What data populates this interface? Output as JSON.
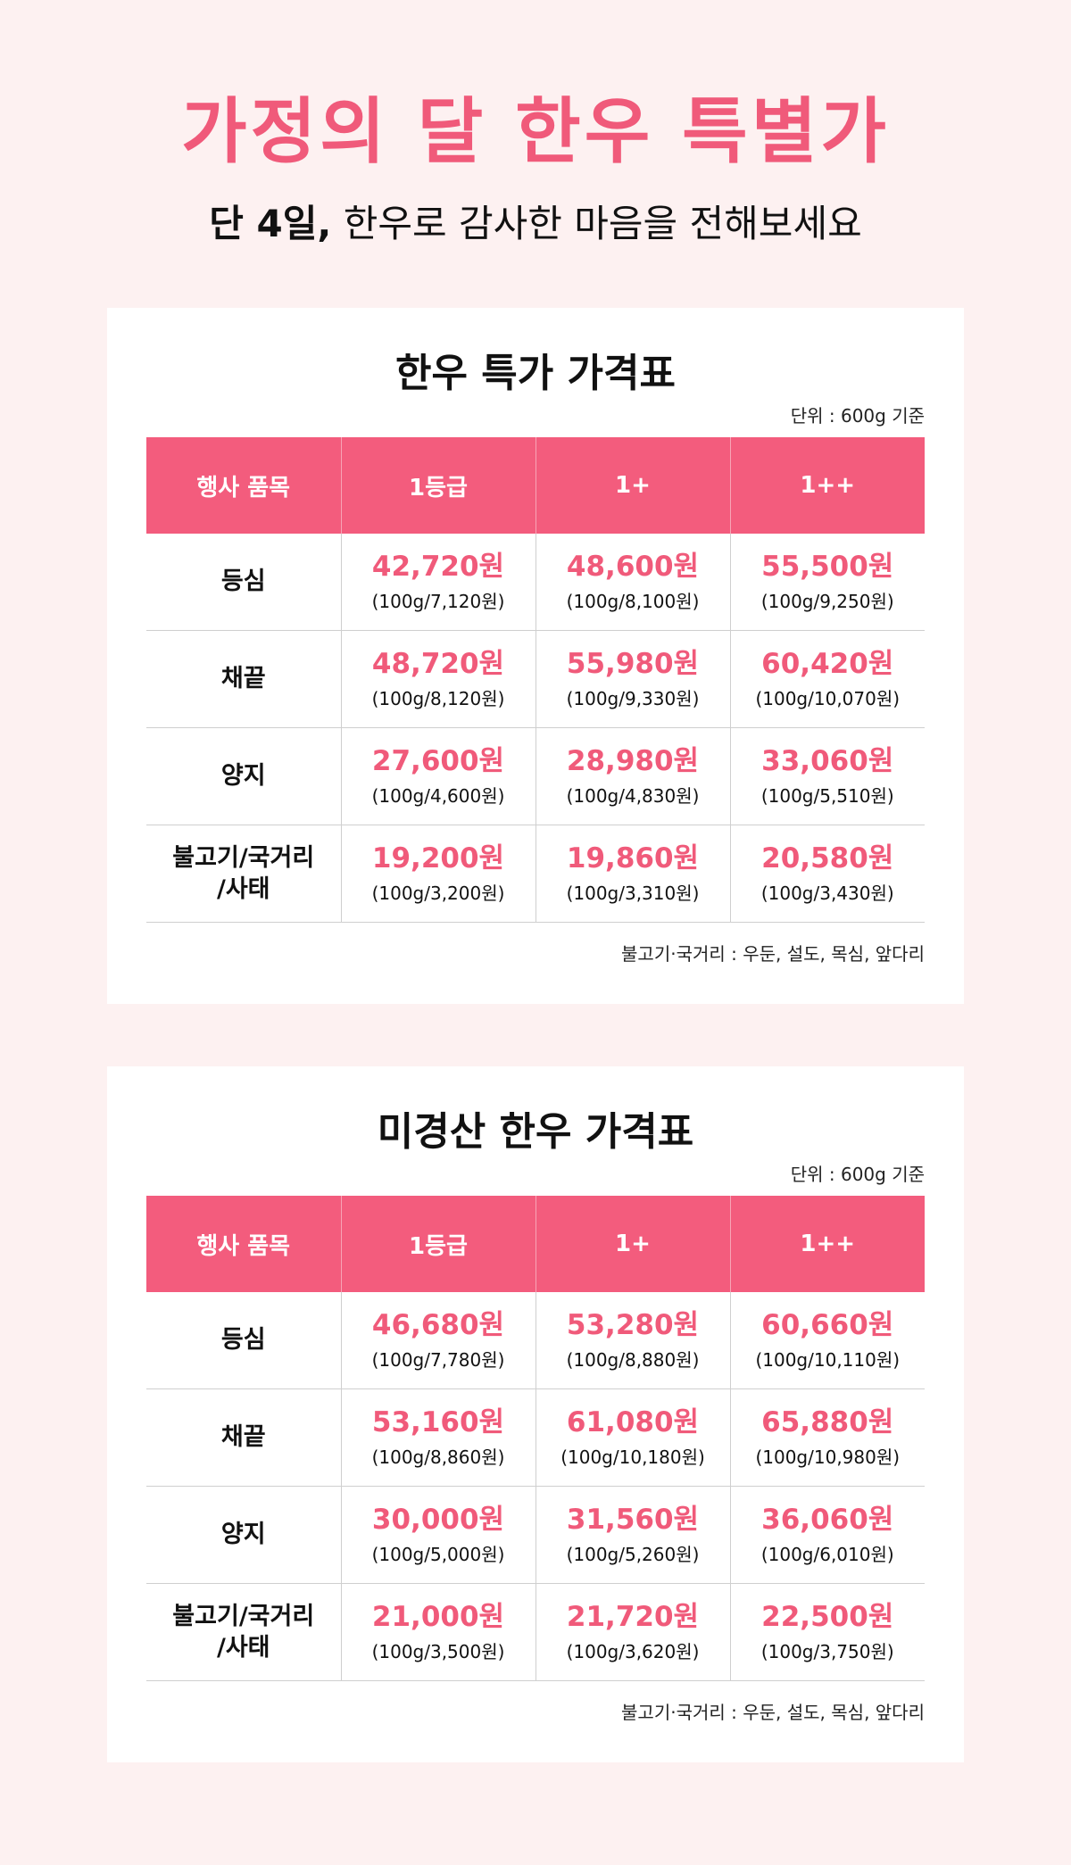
{
  "hero": {
    "title": "가정의 달 한우 특별가",
    "subtitle_bold": "단 4일,",
    "subtitle_rest": " 한우로 감사한 마음을 전해보세요"
  },
  "colors": {
    "accent": "#f05a7a",
    "header_bg": "#f35c7d",
    "page_bg": "#fdf1f1"
  },
  "tables": [
    {
      "title": "한우 특가 가격표",
      "unit_note": "단위 : 600g 기준",
      "headers": [
        "행사 품목",
        "1등급",
        "1+",
        "1++"
      ],
      "rows": [
        {
          "item_line1": "등심",
          "item_line2": "",
          "cells": [
            {
              "price": "42,720원",
              "per": "(100g/7,120원)"
            },
            {
              "price": "48,600원",
              "per": "(100g/8,100원)"
            },
            {
              "price": "55,500원",
              "per": "(100g/9,250원)"
            }
          ]
        },
        {
          "item_line1": "채끝",
          "item_line2": "",
          "cells": [
            {
              "price": "48,720원",
              "per": "(100g/8,120원)"
            },
            {
              "price": "55,980원",
              "per": "(100g/9,330원)"
            },
            {
              "price": "60,420원",
              "per": "(100g/10,070원)"
            }
          ]
        },
        {
          "item_line1": "양지",
          "item_line2": "",
          "cells": [
            {
              "price": "27,600원",
              "per": "(100g/4,600원)"
            },
            {
              "price": "28,980원",
              "per": "(100g/4,830원)"
            },
            {
              "price": "33,060원",
              "per": "(100g/5,510원)"
            }
          ]
        },
        {
          "item_line1": "불고기/국거리",
          "item_line2": "/사태",
          "cells": [
            {
              "price": "19,200원",
              "per": "(100g/3,200원)"
            },
            {
              "price": "19,860원",
              "per": "(100g/3,310원)"
            },
            {
              "price": "20,580원",
              "per": "(100g/3,430원)"
            }
          ]
        }
      ],
      "foot_note": "불고기·국거리 : 우둔, 설도, 목심, 앞다리"
    },
    {
      "title": "미경산 한우 가격표",
      "unit_note": "단위 : 600g 기준",
      "headers": [
        "행사 품목",
        "1등급",
        "1+",
        "1++"
      ],
      "rows": [
        {
          "item_line1": "등심",
          "item_line2": "",
          "cells": [
            {
              "price": "46,680원",
              "per": "(100g/7,780원)"
            },
            {
              "price": "53,280원",
              "per": "(100g/8,880원)"
            },
            {
              "price": "60,660원",
              "per": "(100g/10,110원)"
            }
          ]
        },
        {
          "item_line1": "채끝",
          "item_line2": "",
          "cells": [
            {
              "price": "53,160원",
              "per": "(100g/8,860원)"
            },
            {
              "price": "61,080원",
              "per": "(100g/10,180원)"
            },
            {
              "price": "65,880원",
              "per": "(100g/10,980원)"
            }
          ]
        },
        {
          "item_line1": "양지",
          "item_line2": "",
          "cells": [
            {
              "price": "30,000원",
              "per": "(100g/5,000원)"
            },
            {
              "price": "31,560원",
              "per": "(100g/5,260원)"
            },
            {
              "price": "36,060원",
              "per": "(100g/6,010원)"
            }
          ]
        },
        {
          "item_line1": "불고기/국거리",
          "item_line2": "/사태",
          "cells": [
            {
              "price": "21,000원",
              "per": "(100g/3,500원)"
            },
            {
              "price": "21,720원",
              "per": "(100g/3,620원)"
            },
            {
              "price": "22,500원",
              "per": "(100g/3,750원)"
            }
          ]
        }
      ],
      "foot_note": "불고기·국거리 : 우둔, 설도, 목심, 앞다리"
    }
  ]
}
